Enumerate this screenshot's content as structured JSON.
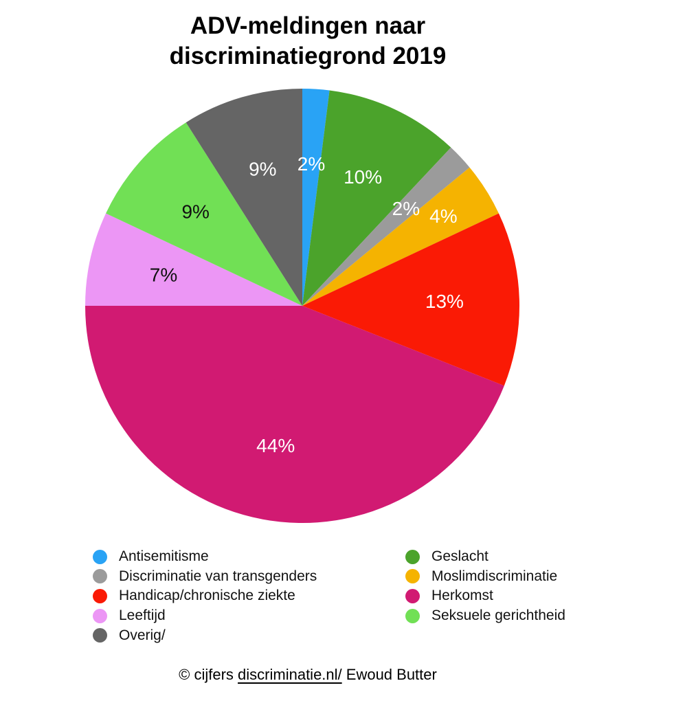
{
  "title_lines": [
    "ADV-meldingen naar",
    "discriminatiegrond 2019"
  ],
  "chart_data": {
    "type": "pie",
    "title": "ADV-meldingen naar discriminatiegrond 2019",
    "unit": "%",
    "start_angle_deg": 0,
    "direction": "clockwise",
    "grid": false,
    "legend_position": "bottom",
    "segments": [
      {
        "label": "Antisemitisme",
        "value": 2,
        "display": "2%",
        "color": "#29A3F5",
        "text_color": "#FFFFFF"
      },
      {
        "label": "Geslacht",
        "value": 10,
        "display": "10%",
        "color": "#4BA32B",
        "text_color": "#FFFFFF"
      },
      {
        "label": "Discriminatie van transgenders",
        "value": 2,
        "display": "2%",
        "color": "#9B9B9B",
        "text_color": "#FFFFFF"
      },
      {
        "label": "Moslimdiscriminatie",
        "value": 4,
        "display": "4%",
        "color": "#F5B301",
        "text_color": "#FFFFFF",
        "label_radius": 0.77
      },
      {
        "label": "Handicap/chronische ziekte",
        "value": 13,
        "display": "13%",
        "color": "#FA1A05",
        "text_color": "#FFFFFF"
      },
      {
        "label": "Herkomst",
        "value": 44,
        "display": "44%",
        "color": "#D11A72",
        "text_color": "#FFFFFF"
      },
      {
        "label": "Leeftijd",
        "value": 7,
        "display": "7%",
        "color": "#EC96F5",
        "text_color": "#111111"
      },
      {
        "label": "Seksuele gerichtheid",
        "value": 9,
        "display": "9%",
        "color": "#71E055",
        "text_color": "#111111"
      },
      {
        "label": "Overig/",
        "value": 9,
        "display": "9%",
        "color": "#656565",
        "text_color": "#FFFFFF"
      }
    ],
    "legend_columns": [
      [
        "Antisemitisme",
        "Discriminatie van transgenders",
        "Handicap/chronische ziekte",
        "Leeftijd",
        "Overig/"
      ],
      [
        "Geslacht",
        "Moslimdiscriminatie",
        "Herkomst",
        "Seksuele gerichtheid"
      ]
    ]
  },
  "footer": {
    "prefix": "© cijfers ",
    "link": "discriminatie.nl/",
    "suffix": " Ewoud Butter"
  }
}
